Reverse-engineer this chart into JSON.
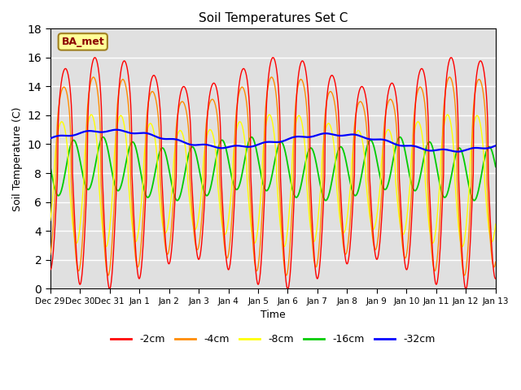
{
  "title": "Soil Temperatures Set C",
  "xlabel": "Time",
  "ylabel": "Soil Temperature (C)",
  "ylim": [
    0,
    18
  ],
  "annotation": "BA_met",
  "plot_bg_color": "#e0e0e0",
  "line_colors": {
    "-2cm": "#ff0000",
    "-4cm": "#ff8c00",
    "-8cm": "#ffff00",
    "-16cm": "#00cc00",
    "-32cm": "#0000ff"
  },
  "x_tick_labels": [
    "Dec 29",
    "Dec 30",
    "Dec 31",
    "Jan 1",
    "Jan 2",
    "Jan 3",
    "Jan 4",
    "Jan 5",
    "Jan 6",
    "Jan 7",
    "Jan 8",
    "Jan 9",
    "Jan 10",
    "Jan 11",
    "Jan 12",
    "Jan 13"
  ],
  "time_days": 15,
  "n_points": 1440
}
